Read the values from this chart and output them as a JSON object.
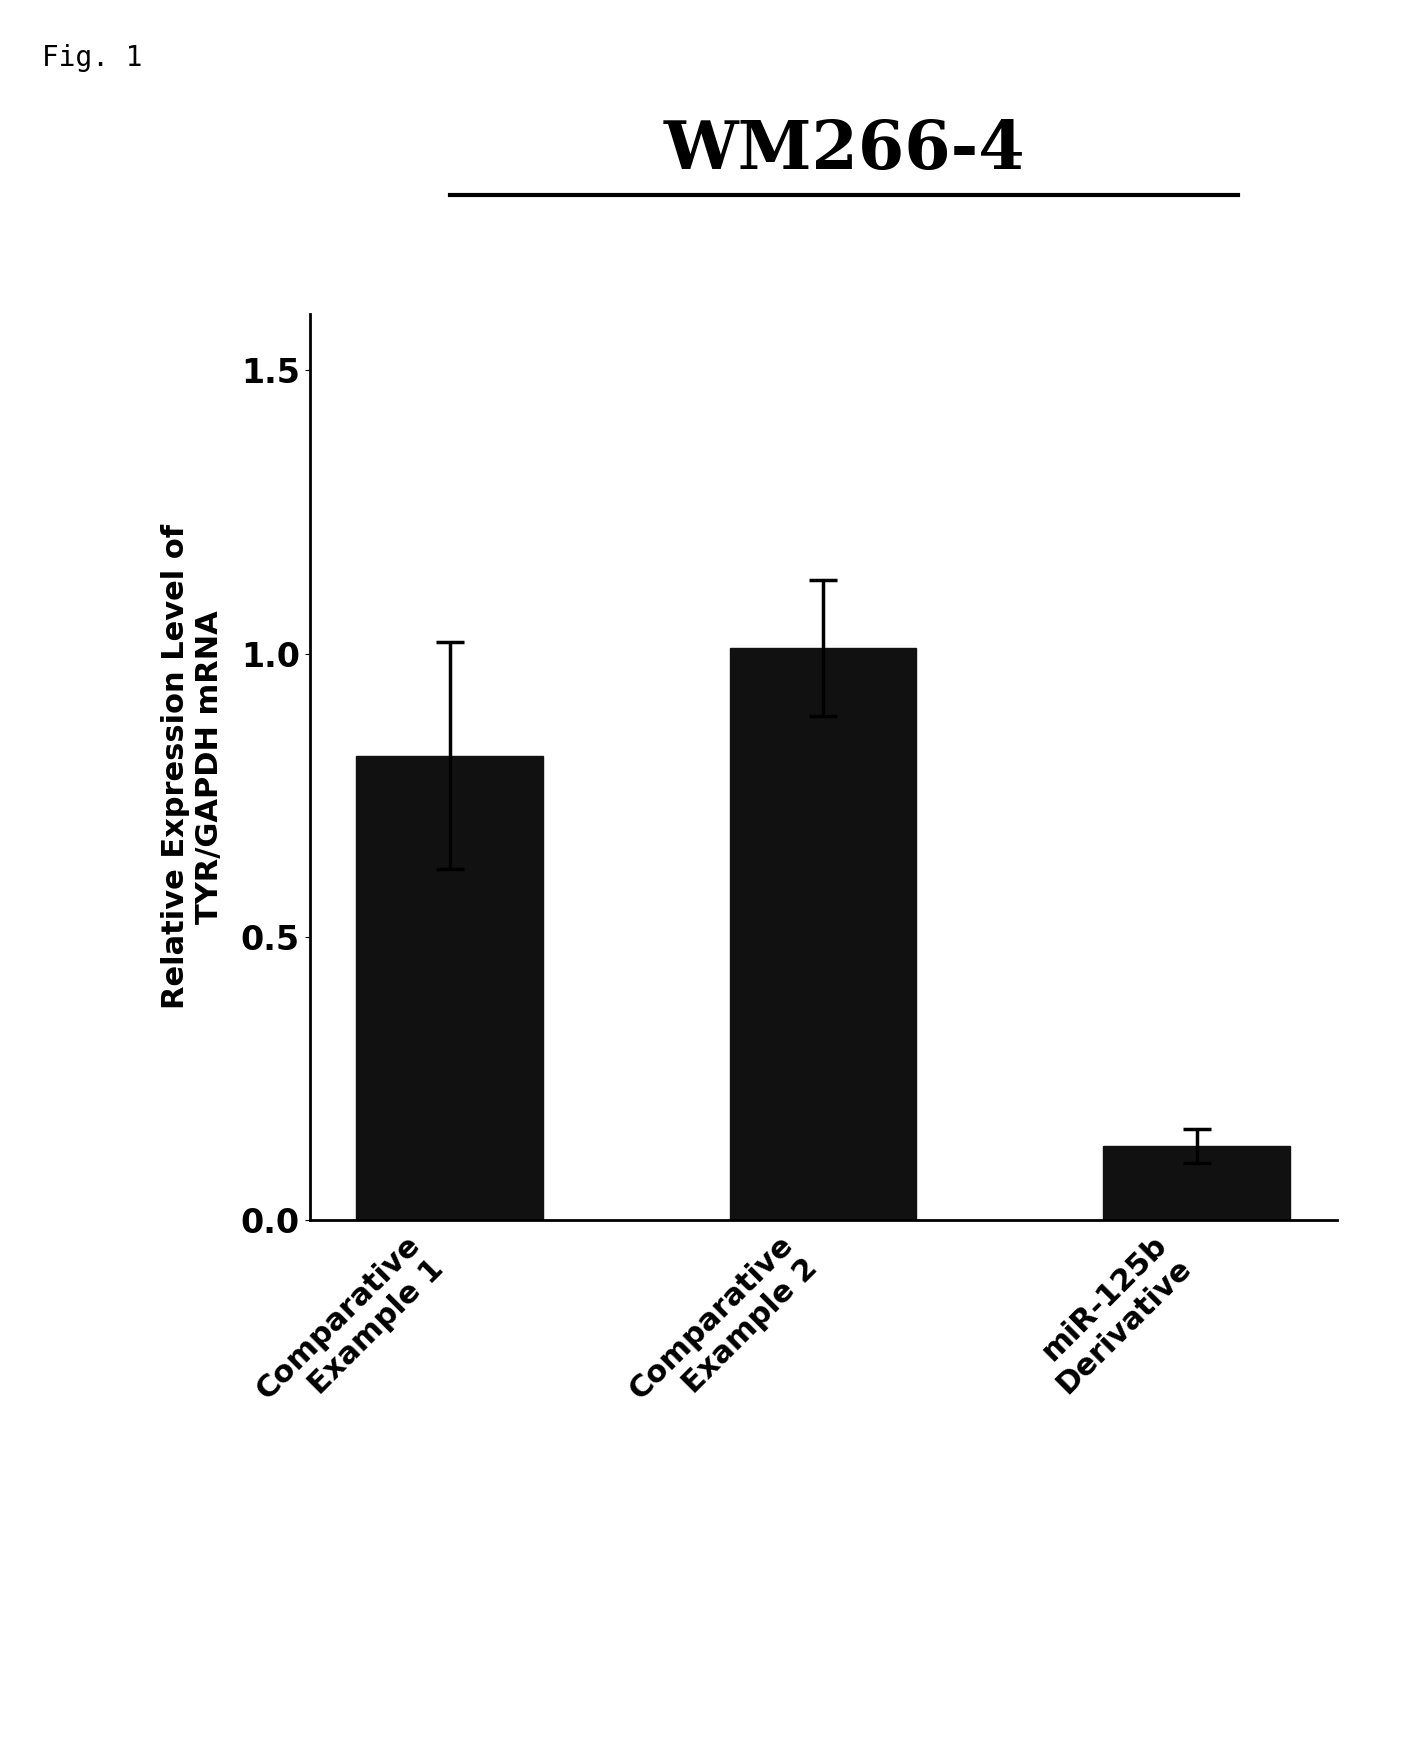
{
  "title": "WM266-4",
  "fig_label": "Fig. 1",
  "ylabel_line1": "Relative Expression Level of",
  "ylabel_line2": "TYR/GAPDH mRNA",
  "categories": [
    "Comparative\nExample 1",
    "Comparative\nExample 2",
    "miR-125b\nDerivative"
  ],
  "values": [
    0.82,
    1.01,
    0.13
  ],
  "errors": [
    0.2,
    0.12,
    0.03
  ],
  "bar_color": "#111111",
  "bar_width": 0.5,
  "ylim": [
    0,
    1.6
  ],
  "yticks": [
    0,
    0.5,
    1.0,
    1.5
  ],
  "background_color": "#ffffff",
  "title_fontsize": 48,
  "ylabel_fontsize": 22,
  "tick_fontsize": 24,
  "xtick_fontsize": 22,
  "fig_label_fontsize": 20
}
